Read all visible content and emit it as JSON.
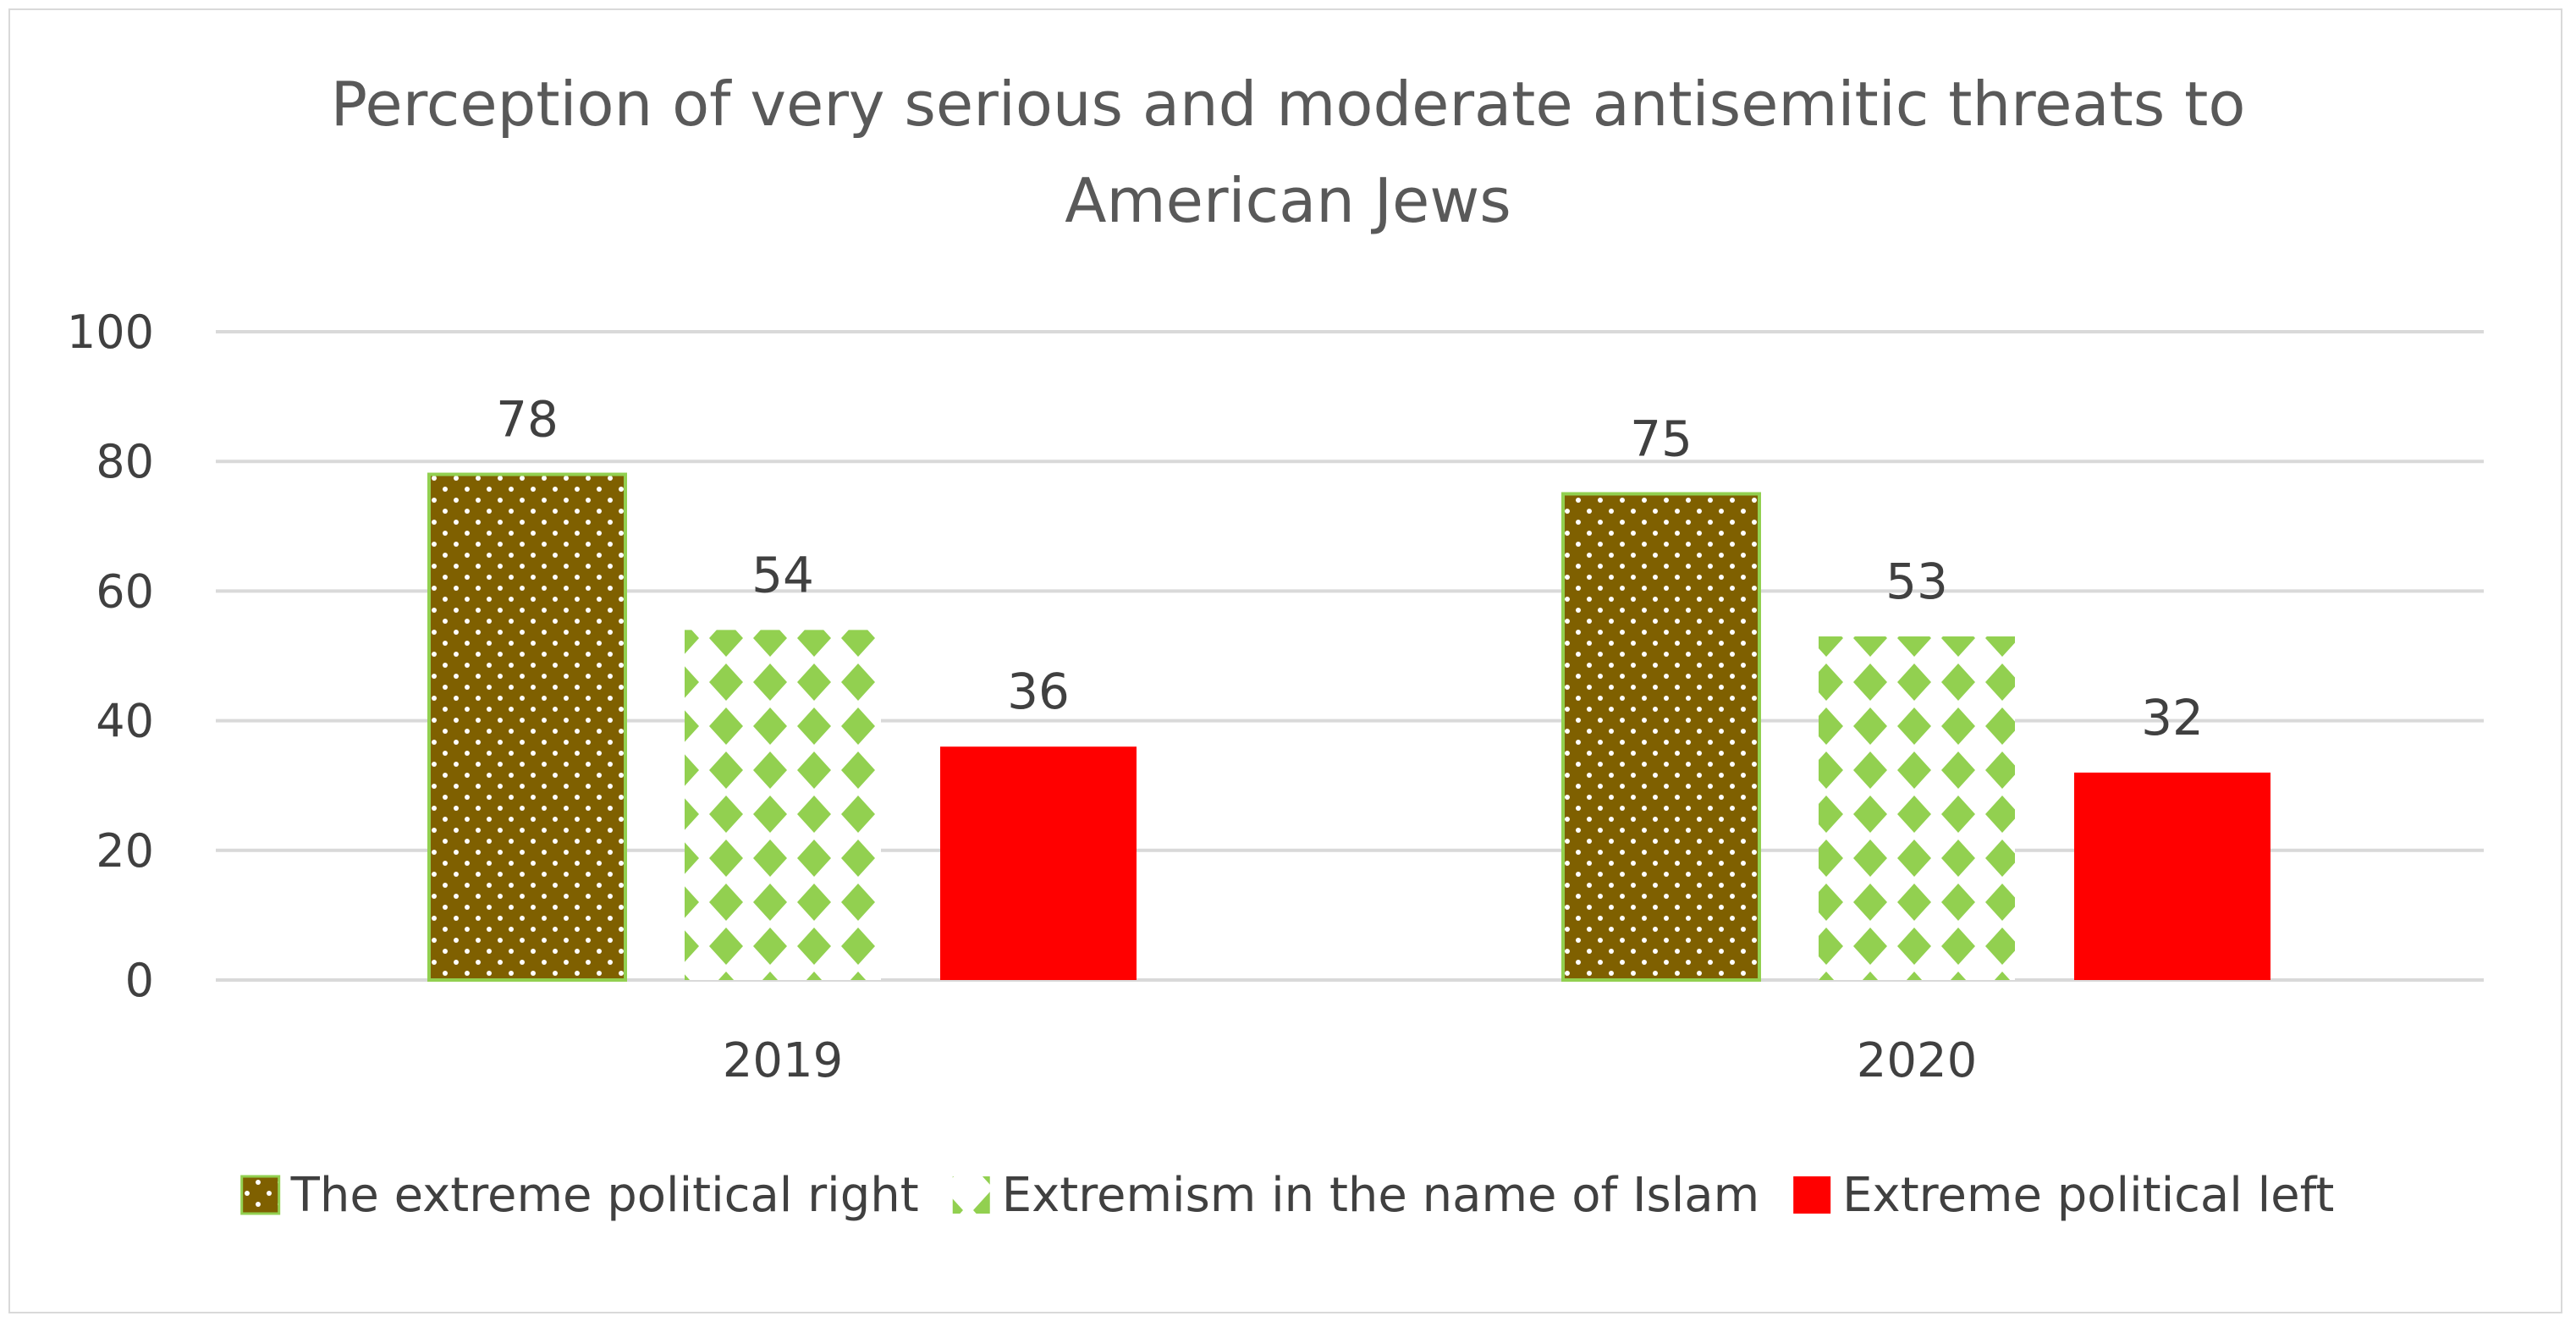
{
  "chart_data": {
    "type": "bar",
    "title_lines": [
      "Perception of very serious and moderate antisemitic threats to",
      "American Jews"
    ],
    "categories": [
      "2019",
      "2020"
    ],
    "series": [
      {
        "name": "The extreme political right",
        "values": [
          78,
          75
        ],
        "color": "#7f6000",
        "pattern": "dots"
      },
      {
        "name": "Extremism in the name of Islam",
        "values": [
          54,
          53
        ],
        "color": "#92d050",
        "pattern": "diamonds"
      },
      {
        "name": "Extreme political left",
        "values": [
          36,
          32
        ],
        "color": "#ff0000",
        "pattern": "solid"
      }
    ],
    "data_labels": [
      [
        "78",
        "75"
      ],
      [
        "54",
        "53"
      ],
      [
        "36",
        "32"
      ]
    ],
    "ylim": [
      0,
      100
    ],
    "yticks": [
      "0",
      "20",
      "40",
      "60",
      "80",
      "100"
    ],
    "grid": true,
    "legend": "bottom"
  }
}
